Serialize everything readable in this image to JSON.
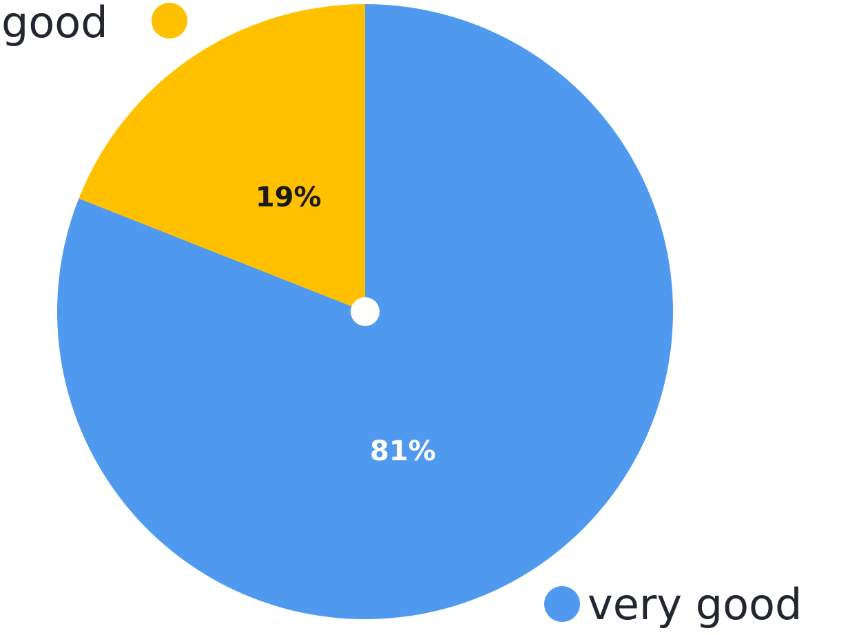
{
  "chart_data": {
    "type": "pie",
    "slices": [
      {
        "label": "good",
        "value": 19,
        "value_label": "19%",
        "color": "#FFC000"
      },
      {
        "label": "very good",
        "value": 81,
        "value_label": "81%",
        "color": "#4F9AEE"
      }
    ],
    "legend": {
      "good": "good",
      "very_good": "very good"
    },
    "label_colors": {
      "good": "#1a1a1a",
      "very_good": "#ffffff"
    },
    "legend_text_color": "#22262e",
    "center_hole_color": "#ffffff"
  }
}
